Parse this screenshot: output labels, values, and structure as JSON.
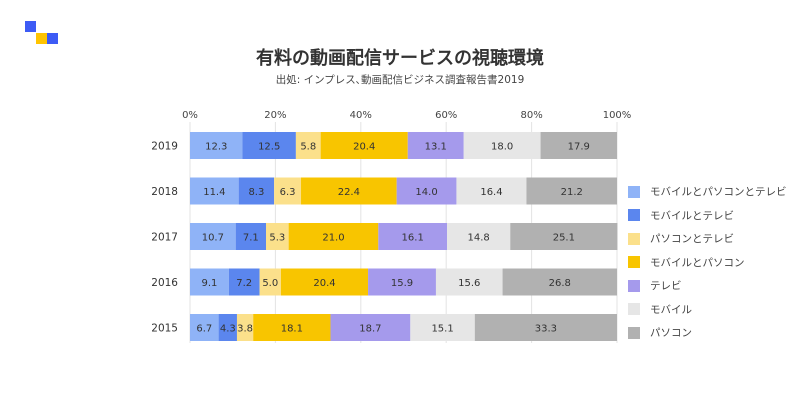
{
  "colors": {
    "logo_blue": "#3d5bf5",
    "logo_yellow": "#ffc400"
  },
  "header": {
    "title": "有料の動画配信サービスの視聴環境",
    "subtitle": "出処: インプレス､動画配信ビジネス調査報告書2019"
  },
  "chart_data": {
    "type": "bar",
    "orientation": "horizontal",
    "stacked": true,
    "percent_scale": true,
    "title": "有料の動画配信サービスの視聴環境",
    "subtitle": "出処: インプレス､動画配信ビジネス調査報告書2019",
    "xlim": [
      0,
      100
    ],
    "x_ticks": [
      "0%",
      "20%",
      "40%",
      "60%",
      "80%",
      "100%"
    ],
    "grid": true,
    "legend_position": "right",
    "categories": [
      "2019",
      "2018",
      "2017",
      "2016",
      "2015"
    ],
    "series": [
      {
        "name": "モバイルとパソコンとテレビ",
        "color": "#8fb3f7",
        "values": [
          12.3,
          11.4,
          10.7,
          9.1,
          6.7
        ]
      },
      {
        "name": "モバイルとテレビ",
        "color": "#5b86ee",
        "values": [
          12.5,
          8.3,
          7.1,
          7.2,
          4.3
        ]
      },
      {
        "name": "パソコンとテレビ",
        "color": "#fbe08b",
        "values": [
          5.8,
          6.3,
          5.3,
          5.0,
          3.8
        ]
      },
      {
        "name": "モバイルとパソコン",
        "color": "#f8c500",
        "values": [
          20.4,
          22.4,
          21.0,
          20.4,
          18.1
        ]
      },
      {
        "name": "テレビ",
        "color": "#a59aec",
        "values": [
          13.1,
          14.0,
          16.1,
          15.9,
          18.7
        ]
      },
      {
        "name": "モバイル",
        "color": "#e6e6e6",
        "values": [
          18.0,
          16.4,
          14.8,
          15.6,
          15.1
        ]
      },
      {
        "name": "パソコン",
        "color": "#b1b1b1",
        "values": [
          17.9,
          21.2,
          25.1,
          26.8,
          33.3
        ]
      }
    ]
  }
}
